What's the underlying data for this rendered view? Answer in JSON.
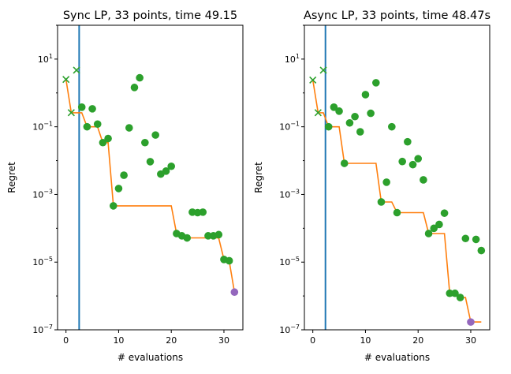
{
  "chart_data": [
    {
      "type": "scatter",
      "title": "Sync LP, 33 points, time 49.15",
      "xlabel": "# evaluations",
      "ylabel": "Regret",
      "xlim": [
        -1.6,
        33.6
      ],
      "ylim": [
        1e-07,
        100
      ],
      "yscale": "log",
      "xticks": [
        0,
        10,
        20,
        30
      ],
      "xtick_labels": [
        "0",
        "10",
        "20",
        "30"
      ],
      "yticks": [
        1,
        -1,
        -3,
        -5,
        -7
      ],
      "ytick_labels": [
        "10^1",
        "10^-1",
        "10^-3",
        "10^-5",
        "10^-7"
      ],
      "vline_x": 2.5,
      "initial_points": {
        "marker": "x",
        "x": [
          0,
          1,
          2
        ],
        "y": [
          2.5,
          0.26,
          4.7
        ]
      },
      "points": {
        "x": [
          3,
          4,
          5,
          6,
          7,
          8,
          9,
          10,
          11,
          12,
          13,
          14,
          15,
          16,
          17,
          18,
          19,
          20,
          21,
          22,
          23,
          24,
          25,
          26,
          27,
          28,
          29,
          30,
          31
        ],
        "y": [
          0.38,
          0.1,
          0.34,
          0.12,
          0.034,
          0.045,
          0.00046,
          0.0015,
          0.0037,
          0.093,
          1.45,
          2.8,
          0.034,
          0.0093,
          0.057,
          0.004,
          0.0049,
          0.0068,
          7e-05,
          6e-05,
          5.2e-05,
          0.0003,
          0.00029,
          0.0003,
          6e-05,
          6e-05,
          6.5e-05,
          1.2e-05,
          1.1e-05
        ]
      },
      "best_point": {
        "x": 32,
        "y": 1.3e-06
      },
      "best_so_far_line": "cumulative minimum",
      "colors": {
        "points": "#2ca02c",
        "line": "#ff7f0e",
        "vline": "#1f77b4",
        "best": "#9467bd"
      }
    },
    {
      "type": "scatter",
      "title": "Async LP, 33 points, time 48.47s",
      "xlabel": "# evaluations",
      "ylabel": "Regret",
      "xlim": [
        -1.6,
        33.6
      ],
      "ylim": [
        1e-07,
        100
      ],
      "yscale": "log",
      "xticks": [
        0,
        10,
        20,
        30
      ],
      "xtick_labels": [
        "0",
        "10",
        "20",
        "30"
      ],
      "yticks": [
        1,
        -1,
        -3,
        -5,
        -7
      ],
      "ytick_labels": [
        "10^1",
        "10^-1",
        "10^-3",
        "10^-5",
        "10^-7"
      ],
      "vline_x": 2.4,
      "initial_points": {
        "marker": "x",
        "x": [
          0,
          1,
          2
        ],
        "y": [
          2.4,
          0.26,
          4.7
        ]
      },
      "points": {
        "x": [
          3,
          4,
          5,
          6,
          7,
          8,
          9,
          10,
          11,
          12,
          13,
          14,
          15,
          16,
          17,
          18,
          19,
          20,
          21,
          22,
          23,
          24,
          25,
          26,
          27,
          28,
          29,
          31,
          32
        ],
        "y": [
          0.1,
          0.38,
          0.29,
          0.0083,
          0.13,
          0.2,
          0.071,
          0.89,
          0.25,
          2.0,
          0.0006,
          0.0023,
          0.1,
          0.00029,
          0.0094,
          0.036,
          0.0076,
          0.0114,
          0.0027,
          7e-05,
          0.0001,
          0.00013,
          0.00028,
          1.2e-06,
          1.2e-06,
          9e-07,
          5e-05,
          4.7e-05,
          2.2e-05
        ]
      },
      "best_point": {
        "x": 30,
        "y": 1.7e-07
      },
      "best_so_far_line": "cumulative minimum",
      "colors": {
        "points": "#2ca02c",
        "line": "#ff7f0e",
        "vline": "#1f77b4",
        "best": "#9467bd"
      }
    }
  ]
}
